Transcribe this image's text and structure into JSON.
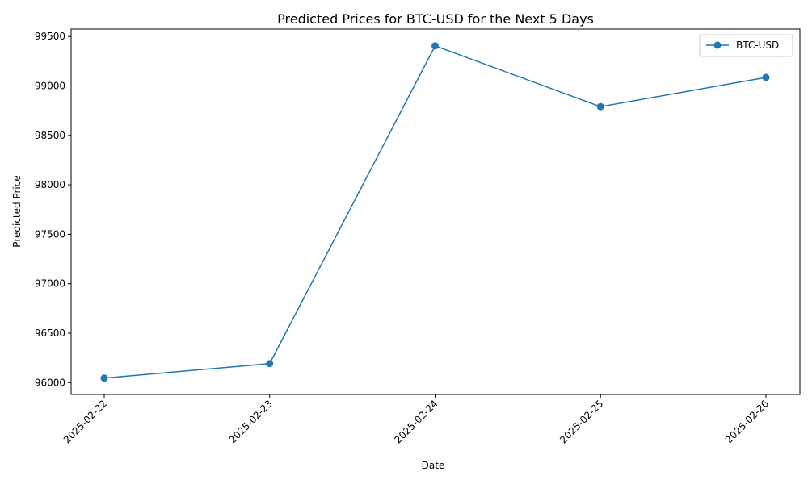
{
  "chart_data": {
    "type": "line",
    "title": "Predicted Prices for BTC-USD for the Next 5 Days",
    "xlabel": "Date",
    "ylabel": "Predicted Price",
    "categories": [
      "2025-02-22",
      "2025-02-23",
      "2025-02-24",
      "2025-02-25",
      "2025-02-26"
    ],
    "series": [
      {
        "name": "BTC-USD",
        "values": [
          96045,
          96192,
          99405,
          98790,
          99086
        ],
        "color": "#1f77b4"
      }
    ],
    "yticks": [
      96000,
      96500,
      97000,
      97500,
      98000,
      98500,
      99000,
      99500
    ],
    "ylim": [
      95880,
      99575
    ],
    "grid": false,
    "legend_position": "top-right",
    "marker": "circle"
  }
}
